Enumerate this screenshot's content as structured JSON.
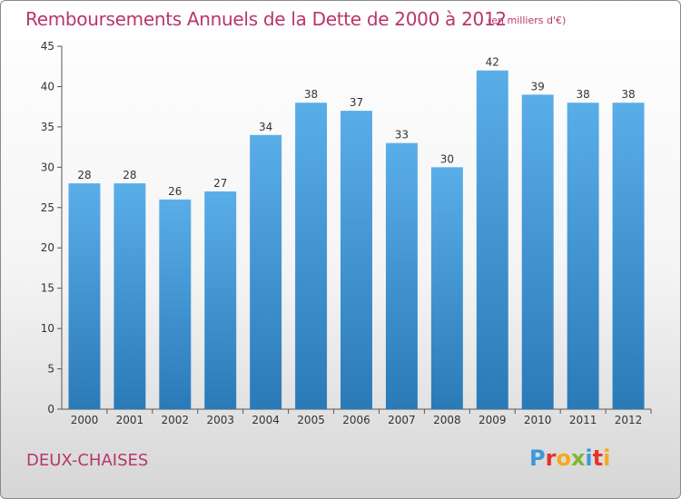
{
  "chart_data": {
    "type": "bar",
    "title": "Remboursements Annuels de la Dette de 2000 à 2012",
    "unit_note": "(en milliers d'€)",
    "categories": [
      "2000",
      "2001",
      "2002",
      "2003",
      "2004",
      "2005",
      "2006",
      "2007",
      "2008",
      "2009",
      "2010",
      "2011",
      "2012"
    ],
    "values": [
      28,
      28,
      26,
      27,
      34,
      38,
      37,
      33,
      30,
      42,
      39,
      38,
      38
    ],
    "ylim": [
      0,
      45
    ],
    "yticks": [
      0,
      5,
      10,
      15,
      20,
      25,
      30,
      35,
      40,
      45
    ],
    "grid": false,
    "colors": {
      "bar_top": "#5aaee8",
      "bar_bottom": "#2a7ab8",
      "title": "#b8366b"
    }
  },
  "footer": {
    "commune": "DEUX-CHAISES",
    "logo": [
      {
        "ch": "P",
        "color": "#3a9ad9"
      },
      {
        "ch": "r",
        "color": "#e8312b"
      },
      {
        "ch": "o",
        "color": "#f7a81b"
      },
      {
        "ch": "x",
        "color": "#7cb82f"
      },
      {
        "ch": "i",
        "color": "#3a9ad9"
      },
      {
        "ch": "t",
        "color": "#e8312b"
      },
      {
        "ch": "i",
        "color": "#f7a81b"
      }
    ]
  }
}
